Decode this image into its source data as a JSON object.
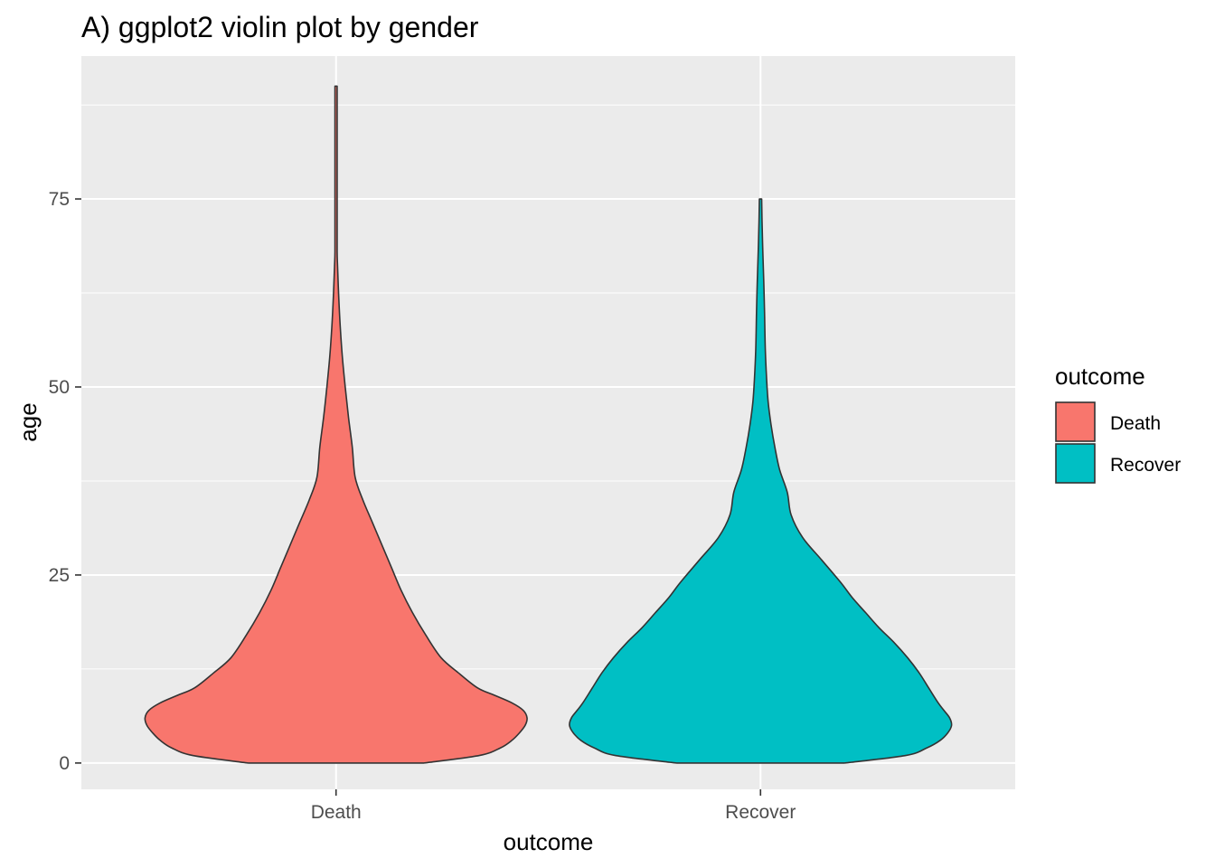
{
  "chart_data": {
    "type": "violin",
    "title": "A) ggplot2 violin plot by gender",
    "xlabel": "outcome",
    "ylabel": "age",
    "categories": [
      "Death",
      "Recover"
    ],
    "ylim": [
      -3.5,
      94
    ],
    "yticks": [
      0,
      25,
      50,
      75
    ],
    "grid": true,
    "legend": {
      "title": "outcome",
      "position": "right",
      "entries": [
        {
          "label": "Death",
          "color": "#F8766D"
        },
        {
          "label": "Recover",
          "color": "#00BFC4"
        }
      ]
    },
    "series": [
      {
        "name": "Death",
        "color": "#F8766D",
        "min": 0,
        "max": 90,
        "density_width": [
          [
            0,
            0.46
          ],
          [
            1,
            0.75
          ],
          [
            2,
            0.86
          ],
          [
            3,
            0.92
          ],
          [
            4,
            0.96
          ],
          [
            5,
            0.99
          ],
          [
            6,
            1.0
          ],
          [
            7,
            0.98
          ],
          [
            8,
            0.92
          ],
          [
            9,
            0.83
          ],
          [
            10,
            0.74
          ],
          [
            12,
            0.64
          ],
          [
            14,
            0.55
          ],
          [
            17,
            0.47
          ],
          [
            20,
            0.4
          ],
          [
            23,
            0.34
          ],
          [
            26,
            0.29
          ],
          [
            29,
            0.24
          ],
          [
            32,
            0.19
          ],
          [
            35,
            0.14
          ],
          [
            38,
            0.1
          ],
          [
            42,
            0.085
          ],
          [
            46,
            0.065
          ],
          [
            50,
            0.048
          ],
          [
            54,
            0.033
          ],
          [
            58,
            0.022
          ],
          [
            62,
            0.014
          ],
          [
            66,
            0.008
          ],
          [
            68,
            0.005
          ],
          [
            72,
            0.004
          ],
          [
            80,
            0.003
          ],
          [
            90,
            0.003
          ]
        ]
      },
      {
        "name": "Recover",
        "color": "#00BFC4",
        "min": 0,
        "max": 75,
        "density_width": [
          [
            0,
            0.44
          ],
          [
            1,
            0.76
          ],
          [
            2,
            0.87
          ],
          [
            3,
            0.94
          ],
          [
            4,
            0.98
          ],
          [
            5,
            1.0
          ],
          [
            6,
            0.99
          ],
          [
            7,
            0.96
          ],
          [
            8,
            0.93
          ],
          [
            10,
            0.88
          ],
          [
            12,
            0.83
          ],
          [
            14,
            0.77
          ],
          [
            16,
            0.7
          ],
          [
            18,
            0.62
          ],
          [
            20,
            0.55
          ],
          [
            22,
            0.48
          ],
          [
            24,
            0.42
          ],
          [
            27,
            0.32
          ],
          [
            30,
            0.22
          ],
          [
            33,
            0.16
          ],
          [
            36,
            0.14
          ],
          [
            39,
            0.1
          ],
          [
            42,
            0.075
          ],
          [
            45,
            0.055
          ],
          [
            48,
            0.04
          ],
          [
            51,
            0.032
          ],
          [
            55,
            0.025
          ],
          [
            60,
            0.021
          ],
          [
            64,
            0.017
          ],
          [
            68,
            0.012
          ],
          [
            72,
            0.008
          ],
          [
            75,
            0.006
          ]
        ]
      }
    ]
  }
}
